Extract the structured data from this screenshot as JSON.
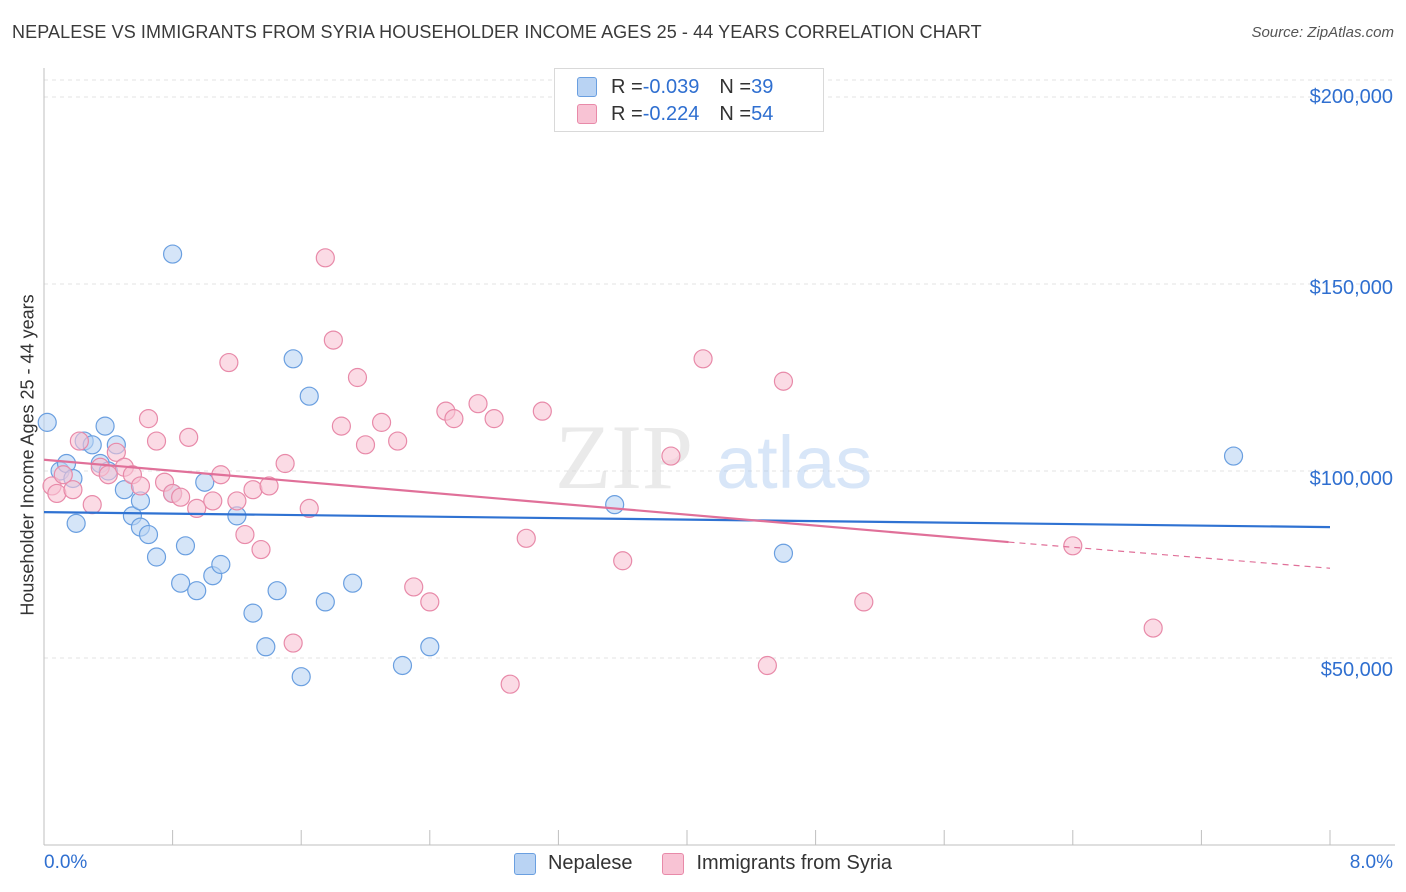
{
  "title": "NEPALESE VS IMMIGRANTS FROM SYRIA HOUSEHOLDER INCOME AGES 25 - 44 YEARS CORRELATION CHART",
  "source": "Source: ZipAtlas.com",
  "watermark": "ZIPatlas",
  "colors": {
    "nepalese_fill": "#b9d3f3",
    "nepalese_stroke": "#6a9fe0",
    "nepalese_line": "#2f72d2",
    "syria_fill": "#f8c3d4",
    "syria_stroke": "#e88aa9",
    "syria_line": "#e07099",
    "axis_text": "#2f6fd0"
  },
  "legend": {
    "rows": [
      {
        "r_label": "R = ",
        "r_value": "-0.039",
        "n_label": "N = ",
        "n_value": "39"
      },
      {
        "r_label": "R = ",
        "r_value": "-0.224",
        "n_label": "N = ",
        "n_value": "54"
      }
    ]
  },
  "bottom_legend": [
    "Nepalese",
    "Immigrants from Syria"
  ],
  "x_axis": {
    "min_label": "0.0%",
    "max_label": "8.0%"
  },
  "y_axis": {
    "label": "Householder Income Ages 25 - 44 years",
    "ticks": [
      "$200,000",
      "$150,000",
      "$100,000",
      "$50,000"
    ]
  },
  "chart_data": {
    "type": "scatter",
    "title": "NEPALESE VS IMMIGRANTS FROM SYRIA HOUSEHOLDER INCOME AGES 25 - 44 YEARS CORRELATION CHART",
    "xlabel": "",
    "ylabel": "Householder Income Ages 25 - 44 years",
    "xlim": [
      0,
      8
    ],
    "ylim": [
      0,
      200000
    ],
    "x_unit": "%",
    "y_ticks": [
      50000,
      100000,
      150000,
      200000
    ],
    "grid": true,
    "legend_position": "top-center",
    "series": [
      {
        "name": "Nepalese",
        "r": -0.039,
        "n": 39,
        "trend": {
          "x": [
            0,
            8
          ],
          "y": [
            89000,
            85000
          ]
        },
        "points": [
          [
            0.02,
            113000
          ],
          [
            0.1,
            100000
          ],
          [
            0.14,
            102000
          ],
          [
            0.18,
            98000
          ],
          [
            0.2,
            86000
          ],
          [
            0.25,
            108000
          ],
          [
            0.3,
            107000
          ],
          [
            0.35,
            102000
          ],
          [
            0.38,
            112000
          ],
          [
            0.4,
            100000
          ],
          [
            0.45,
            107000
          ],
          [
            0.5,
            95000
          ],
          [
            0.55,
            88000
          ],
          [
            0.6,
            85000
          ],
          [
            0.65,
            83000
          ],
          [
            0.7,
            77000
          ],
          [
            0.8,
            94000
          ],
          [
            0.85,
            70000
          ],
          [
            0.88,
            80000
          ],
          [
            0.95,
            68000
          ],
          [
            1.0,
            97000
          ],
          [
            1.05,
            72000
          ],
          [
            1.1,
            75000
          ],
          [
            1.2,
            88000
          ],
          [
            1.3,
            62000
          ],
          [
            1.38,
            53000
          ],
          [
            1.45,
            68000
          ],
          [
            1.55,
            130000
          ],
          [
            1.6,
            45000
          ],
          [
            1.65,
            120000
          ],
          [
            1.75,
            65000
          ],
          [
            1.92,
            70000
          ],
          [
            2.23,
            48000
          ],
          [
            2.4,
            53000
          ],
          [
            3.55,
            91000
          ],
          [
            4.6,
            78000
          ],
          [
            7.4,
            104000
          ],
          [
            0.8,
            158000
          ],
          [
            0.6,
            92000
          ]
        ]
      },
      {
        "name": "Immigrants from Syria",
        "r": -0.224,
        "n": 54,
        "trend": {
          "x": [
            0,
            6
          ],
          "y": [
            103000,
            81000
          ],
          "dashed_to": [
            8,
            74000
          ]
        },
        "points": [
          [
            0.05,
            96000
          ],
          [
            0.08,
            94000
          ],
          [
            0.12,
            99000
          ],
          [
            0.18,
            95000
          ],
          [
            0.22,
            108000
          ],
          [
            0.3,
            91000
          ],
          [
            0.35,
            101000
          ],
          [
            0.4,
            99000
          ],
          [
            0.45,
            105000
          ],
          [
            0.5,
            101000
          ],
          [
            0.55,
            99000
          ],
          [
            0.6,
            96000
          ],
          [
            0.65,
            114000
          ],
          [
            0.7,
            108000
          ],
          [
            0.75,
            97000
          ],
          [
            0.8,
            94000
          ],
          [
            0.85,
            93000
          ],
          [
            0.9,
            109000
          ],
          [
            0.95,
            90000
          ],
          [
            1.05,
            92000
          ],
          [
            1.1,
            99000
          ],
          [
            1.15,
            129000
          ],
          [
            1.2,
            92000
          ],
          [
            1.25,
            83000
          ],
          [
            1.3,
            95000
          ],
          [
            1.35,
            79000
          ],
          [
            1.4,
            96000
          ],
          [
            1.5,
            102000
          ],
          [
            1.55,
            54000
          ],
          [
            1.65,
            90000
          ],
          [
            1.75,
            157000
          ],
          [
            1.8,
            135000
          ],
          [
            1.85,
            112000
          ],
          [
            1.95,
            125000
          ],
          [
            2.0,
            107000
          ],
          [
            2.1,
            113000
          ],
          [
            2.2,
            108000
          ],
          [
            2.3,
            69000
          ],
          [
            2.4,
            65000
          ],
          [
            2.5,
            116000
          ],
          [
            2.55,
            114000
          ],
          [
            2.7,
            118000
          ],
          [
            2.8,
            114000
          ],
          [
            2.9,
            43000
          ],
          [
            3.0,
            82000
          ],
          [
            3.1,
            116000
          ],
          [
            3.6,
            76000
          ],
          [
            3.9,
            104000
          ],
          [
            4.1,
            130000
          ],
          [
            4.5,
            48000
          ],
          [
            4.6,
            124000
          ],
          [
            5.1,
            65000
          ],
          [
            6.4,
            80000
          ],
          [
            6.9,
            58000
          ]
        ]
      }
    ]
  }
}
